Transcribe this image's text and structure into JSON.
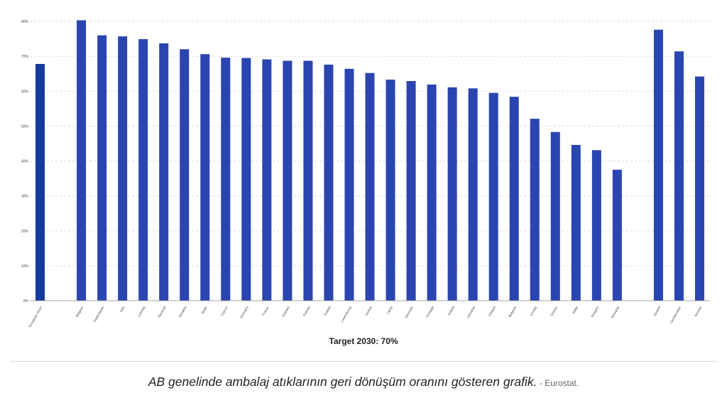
{
  "chart_data": {
    "type": "bar",
    "categories": [
      "European Union",
      "",
      "Belgium",
      "Netherlands",
      "Italy",
      "Czechia",
      "Slovenia",
      "Slovakia",
      "Spain",
      "Cyprus",
      "Germany",
      "France",
      "Sweden",
      "Estonia",
      "Poland",
      "Luxembourg",
      "Austria",
      "Latvia",
      "Denmark",
      "Portugal",
      "Ireland",
      "Lithuania",
      "Finland",
      "Bulgaria",
      "Croatia",
      "Greece",
      "Malta",
      "Hungary",
      "Romania",
      "",
      "Iceland",
      "Liechtenstein",
      "Norway"
    ],
    "values": [
      67.8,
      null,
      80.3,
      76.0,
      75.7,
      74.9,
      73.7,
      72.0,
      70.6,
      69.6,
      69.5,
      69.1,
      68.7,
      68.7,
      67.6,
      66.4,
      65.2,
      63.3,
      62.9,
      61.9,
      61.1,
      60.8,
      59.5,
      58.4,
      52.1,
      48.3,
      44.6,
      43.1,
      37.5,
      null,
      77.6,
      71.4,
      64.2
    ],
    "highlight_color": "#163a9b",
    "bar_color": "#2a45b0",
    "ylim": [
      0,
      80
    ],
    "yticks": [
      "0%",
      "10%",
      "20%",
      "30%",
      "40%",
      "50%",
      "60%",
      "70%",
      "80%"
    ],
    "grid": true,
    "xlabel": "Target 2030: 70%"
  },
  "caption": {
    "text": "AB genelinde ambalaj atıklarının geri dönüşüm oranını gösteren grafik.",
    "source": " - Eurostat."
  }
}
